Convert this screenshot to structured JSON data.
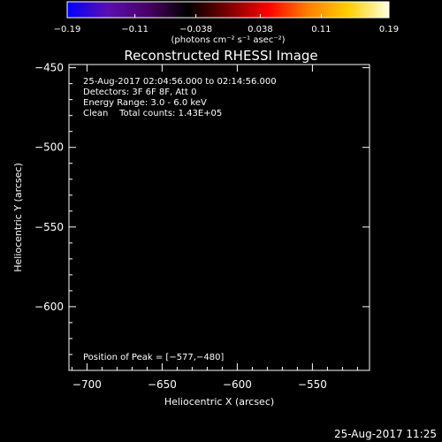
{
  "chart_data": {
    "type": "heatmap",
    "title": "Reconstructed RHESSI Image",
    "xlabel": "Heliocentric X (arcsec)",
    "ylabel": "Heliocentric Y (arcsec)",
    "xlim": [
      -712,
      -512
    ],
    "ylim": [
      -640,
      -448
    ],
    "x_ticks": [
      -700,
      -650,
      -600,
      -550
    ],
    "x_tick_labels": [
      "−700",
      "−650",
      "−600",
      "−550"
    ],
    "y_ticks": [
      -450,
      -500,
      -550,
      -600
    ],
    "y_tick_labels": [
      "−450",
      "−500",
      "−550",
      "−600"
    ],
    "colorbar": {
      "range": [
        -0.19,
        0.19
      ],
      "ticks": [
        -0.19,
        -0.11,
        -0.038,
        0.038,
        0.11,
        0.19
      ],
      "tick_labels": [
        "−0.19",
        "−0.11",
        "−0.038",
        "0.038",
        "0.11",
        "0.19"
      ],
      "unit_label": "(photons cm⁻² s⁻¹ asec⁻²)",
      "colors": [
        "#0000ff",
        "#5a10b0",
        "#4a0066",
        "#000000",
        "#7a0000",
        "#ff0000",
        "#ff8000",
        "#ffd000",
        "#ffffe0"
      ]
    },
    "peak": {
      "x": -577,
      "y": -480
    },
    "grid": false
  },
  "annotations": {
    "time_range": "25-Aug-2017 02:04:56.000 to 02:14:56.000",
    "detectors": "Detectors: 3F 6F 8F, Att 0",
    "energy": "Energy Range: 3.0 - 6.0 keV",
    "clean": "Clean    Total counts: 1.43E+05",
    "peak_label": "Position of Peak = [−577,−480]"
  },
  "timestamp": "25-Aug-2017 11:25"
}
